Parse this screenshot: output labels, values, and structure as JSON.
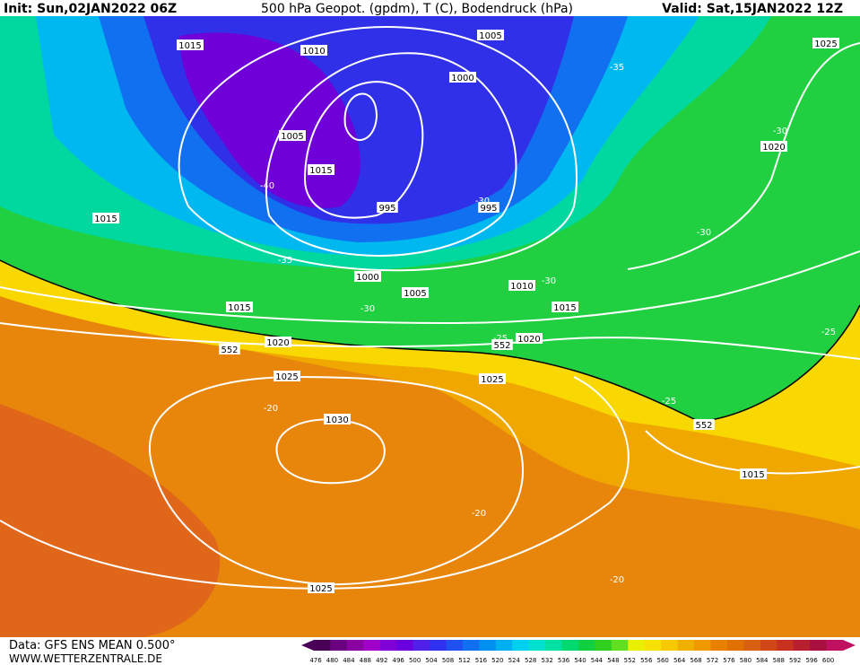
{
  "header": {
    "init": "Init: Sun,02JAN2022 06Z",
    "title": "500 hPa Geopot. (gpdm), T (C), Bodendruck (hPa)",
    "valid": "Valid: Sat,15JAN2022 12Z"
  },
  "footer": {
    "data": "Data: GFS ENS MEAN 0.500°",
    "site": "WWW.WETTERZENTRALE.DE"
  },
  "map": {
    "contour_labels": [
      "1015",
      "1010",
      "1005",
      "1025",
      "-35",
      "1000",
      "-30",
      "1005",
      "1020",
      "1015",
      "-40",
      "-30",
      "995",
      "995",
      "1015",
      "-30",
      "-35",
      "1000",
      "1010",
      "-30",
      "1005",
      "1015",
      "-30",
      "1015",
      "-25",
      "-25",
      "1020",
      "552",
      "1020",
      "552",
      "1025",
      "1025",
      "-25",
      "-20",
      "1030",
      "552",
      "1015",
      "-20",
      "-20",
      "1025"
    ]
  },
  "colorbar": {
    "ticks": [
      476,
      480,
      484,
      488,
      492,
      496,
      500,
      504,
      508,
      512,
      516,
      520,
      524,
      528,
      532,
      536,
      540,
      544,
      548,
      552,
      556,
      560,
      564,
      568,
      572,
      576,
      580,
      584,
      588,
      592,
      596,
      600
    ],
    "colors": [
      "#4b0058",
      "#6a0080",
      "#8a00a0",
      "#a000c8",
      "#8000d8",
      "#6a00e0",
      "#5020e8",
      "#3030f0",
      "#2050f0",
      "#1070f0",
      "#0090f0",
      "#00b0f0",
      "#00d0f0",
      "#00e0d0",
      "#00e0a0",
      "#00d870",
      "#10d040",
      "#30d020",
      "#60e020",
      "#e8f000",
      "#f8e000",
      "#f8c800",
      "#f0b000",
      "#f09800",
      "#e88000",
      "#e07000",
      "#d86010",
      "#d04818",
      "#c83020",
      "#b82030",
      "#a81040",
      "#c01060"
    ]
  }
}
